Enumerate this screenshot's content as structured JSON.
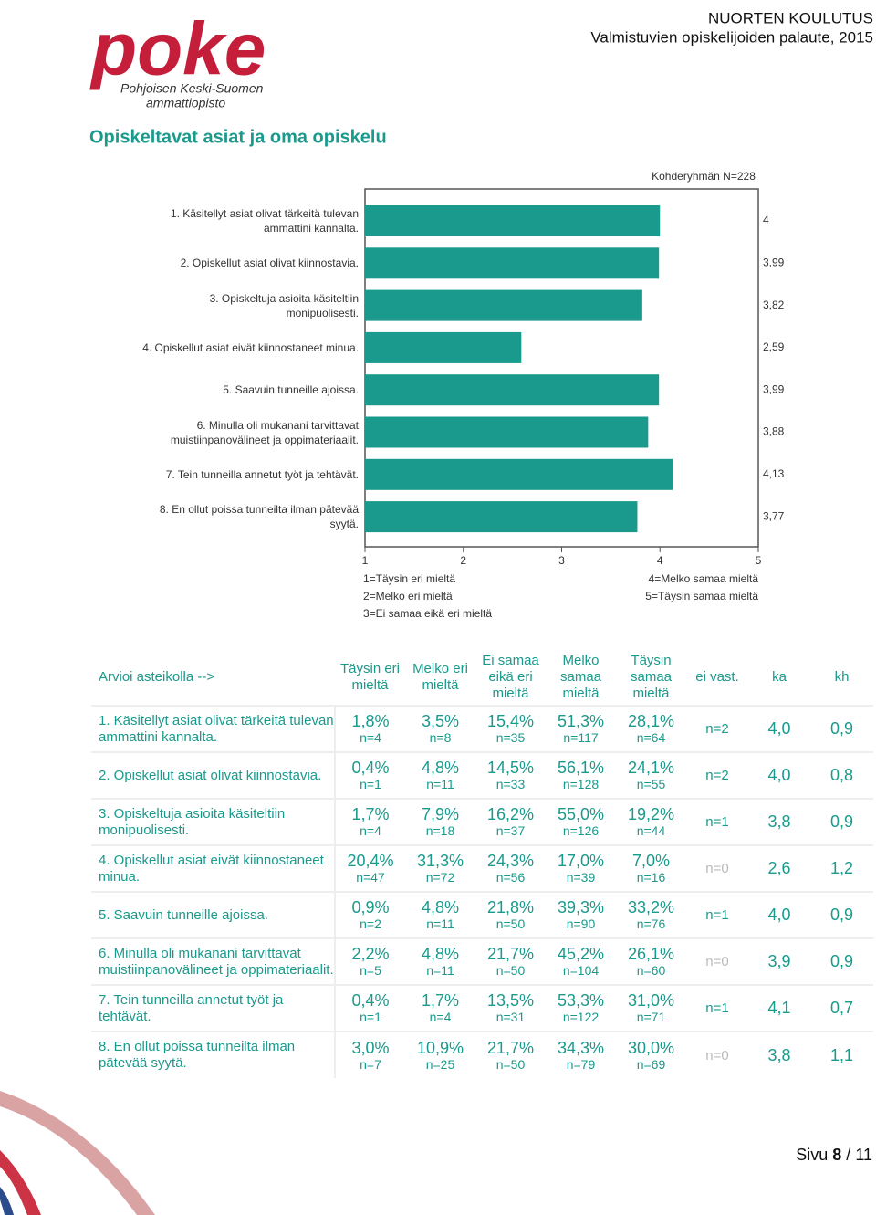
{
  "header": {
    "logo": {
      "wordmark": "poke",
      "line1": "Pohjoisen Keski-Suomen",
      "line2": "ammattiopisto"
    },
    "unit": "NUORTEN KOULUTUS",
    "report": "Valmistuvien opiskelijoiden palaute, 2015"
  },
  "section_title": "Opiskeltavat asiat ja oma opiskelu",
  "chart_data": {
    "type": "bar",
    "orientation": "horizontal",
    "annotation": "Kohderyhmän N=228",
    "categories": [
      "1. Käsitellyt asiat olivat tärkeitä tulevan ammattini kannalta.",
      "2. Opiskellut asiat olivat kiinnostavia.",
      "3. Opiskeltuja asioita käsiteltiin monipuolisesti.",
      "4. Opiskellut asiat eivät kiinnostaneet minua.",
      "5. Saavuin tunneille ajoissa.",
      "6. Minulla oli mukanani tarvittavat muistiinpanovälineet ja oppimateriaalit.",
      "7. Tein tunneilla annetut työt ja tehtävät.",
      "8. En ollut poissa tunneilta ilman pätevää syytä."
    ],
    "values": [
      4,
      3.99,
      3.82,
      2.59,
      3.99,
      3.88,
      4.13,
      3.77
    ],
    "value_labels": [
      "4",
      "3,99",
      "3,82",
      "2,59",
      "3,99",
      "3,88",
      "4,13",
      "3,77"
    ],
    "color": "#1a9a8c",
    "xlim": [
      1,
      5
    ],
    "xticks": [
      1,
      2,
      3,
      4,
      5
    ],
    "scale_legend": [
      "1=Täysin eri mieltä",
      "2=Melko eri mieltä",
      "3=Ei samaa eikä eri mieltä",
      "4=Melko samaa mieltä",
      "5=Täysin samaa mieltä"
    ]
  },
  "table": {
    "header": [
      "Arvioi asteikolla -->",
      "Täysin eri mieltä",
      "Melko eri mieltä",
      "Ei samaa eikä eri mieltä",
      "Melko samaa mieltä",
      "Täysin samaa mieltä",
      "ei vast.",
      "ka",
      "kh"
    ],
    "rows": [
      {
        "question": "1. Käsitellyt asiat olivat tärkeitä tulevan ammattini kannalta.",
        "cells": [
          [
            "1,8%",
            "n=4"
          ],
          [
            "3,5%",
            "n=8"
          ],
          [
            "15,4%",
            "n=35"
          ],
          [
            "51,3%",
            "n=117"
          ],
          [
            "28,1%",
            "n=64"
          ]
        ],
        "no_answer": "n=2",
        "mean": "4,0",
        "sd": "0,9"
      },
      {
        "question": "2. Opiskellut asiat olivat kiinnostavia.",
        "cells": [
          [
            "0,4%",
            "n=1"
          ],
          [
            "4,8%",
            "n=11"
          ],
          [
            "14,5%",
            "n=33"
          ],
          [
            "56,1%",
            "n=128"
          ],
          [
            "24,1%",
            "n=55"
          ]
        ],
        "no_answer": "n=2",
        "mean": "4,0",
        "sd": "0,8"
      },
      {
        "question": "3. Opiskeltuja asioita käsiteltiin monipuolisesti.",
        "cells": [
          [
            "1,7%",
            "n=4"
          ],
          [
            "7,9%",
            "n=18"
          ],
          [
            "16,2%",
            "n=37"
          ],
          [
            "55,0%",
            "n=126"
          ],
          [
            "19,2%",
            "n=44"
          ]
        ],
        "no_answer": "n=1",
        "mean": "3,8",
        "sd": "0,9"
      },
      {
        "question": "4. Opiskellut asiat eivät kiinnostaneet minua.",
        "cells": [
          [
            "20,4%",
            "n=47"
          ],
          [
            "31,3%",
            "n=72"
          ],
          [
            "24,3%",
            "n=56"
          ],
          [
            "17,0%",
            "n=39"
          ],
          [
            "7,0%",
            "n=16"
          ]
        ],
        "no_answer": "n=0",
        "no_answer_color": "#bbbbbb",
        "mean": "2,6",
        "sd": "1,2"
      },
      {
        "question": "5. Saavuin tunneille ajoissa.",
        "cells": [
          [
            "0,9%",
            "n=2"
          ],
          [
            "4,8%",
            "n=11"
          ],
          [
            "21,8%",
            "n=50"
          ],
          [
            "39,3%",
            "n=90"
          ],
          [
            "33,2%",
            "n=76"
          ]
        ],
        "no_answer": "n=1",
        "mean": "4,0",
        "sd": "0,9"
      },
      {
        "question": "6. Minulla oli mukanani tarvittavat muistiinpanovälineet ja oppimateriaalit.",
        "cells": [
          [
            "2,2%",
            "n=5"
          ],
          [
            "4,8%",
            "n=11"
          ],
          [
            "21,7%",
            "n=50"
          ],
          [
            "45,2%",
            "n=104"
          ],
          [
            "26,1%",
            "n=60"
          ]
        ],
        "no_answer": "n=0",
        "no_answer_color": "#bbbbbb",
        "mean": "3,9",
        "sd": "0,9"
      },
      {
        "question": "7. Tein tunneilla annetut työt ja tehtävät.",
        "cells": [
          [
            "0,4%",
            "n=1"
          ],
          [
            "1,7%",
            "n=4"
          ],
          [
            "13,5%",
            "n=31"
          ],
          [
            "53,3%",
            "n=122"
          ],
          [
            "31,0%",
            "n=71"
          ]
        ],
        "no_answer": "n=1",
        "mean": "4,1",
        "sd": "0,7"
      },
      {
        "question": "8. En ollut poissa tunneilta ilman pätevää syytä.",
        "cells": [
          [
            "3,0%",
            "n=7"
          ],
          [
            "10,9%",
            "n=25"
          ],
          [
            "21,7%",
            "n=50"
          ],
          [
            "34,3%",
            "n=79"
          ],
          [
            "30,0%",
            "n=69"
          ]
        ],
        "no_answer": "n=0",
        "no_answer_color": "#bbbbbb",
        "mean": "3,8",
        "sd": "1,1"
      }
    ]
  },
  "footer": {
    "page_word": "Sivu",
    "page_number": "8",
    "separator": "/",
    "page_total": "11"
  }
}
